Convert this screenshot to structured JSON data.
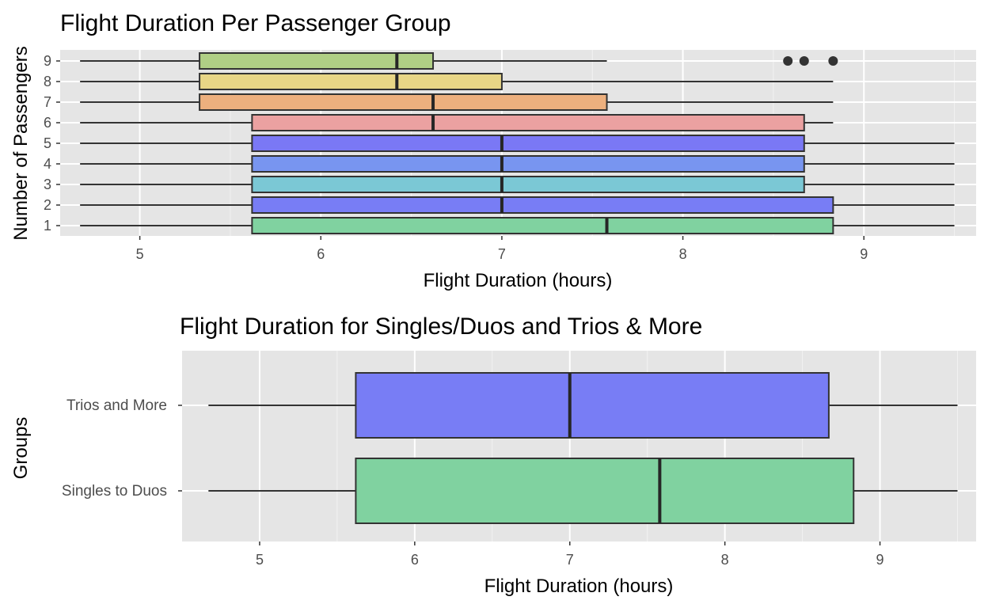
{
  "chart_data": [
    {
      "type": "boxplot",
      "orientation": "horizontal",
      "title": "Flight Duration Per Passenger Group",
      "xlabel": "Flight Duration (hours)",
      "ylabel": "Number of Passengers",
      "xlim": [
        4.56,
        9.62
      ],
      "xticks": [
        5,
        6,
        7,
        8,
        9
      ],
      "grid": true,
      "legend": "none",
      "categories": [
        "1",
        "2",
        "3",
        "4",
        "5",
        "6",
        "7",
        "8",
        "9"
      ],
      "boxes": [
        {
          "category": "1",
          "whisker_low": 4.67,
          "q1": 5.62,
          "median": 7.58,
          "q3": 8.83,
          "whisker_high": 9.5,
          "fill": "#80D2A0",
          "outliers": []
        },
        {
          "category": "2",
          "whisker_low": 4.67,
          "q1": 5.62,
          "median": 7.0,
          "q3": 8.83,
          "whisker_high": 9.5,
          "fill": "#787DF5",
          "outliers": []
        },
        {
          "category": "3",
          "whisker_low": 4.67,
          "q1": 5.62,
          "median": 7.0,
          "q3": 8.67,
          "whisker_high": 9.5,
          "fill": "#7BC8D5",
          "outliers": []
        },
        {
          "category": "4",
          "whisker_low": 4.67,
          "q1": 5.62,
          "median": 7.0,
          "q3": 8.67,
          "whisker_high": 9.5,
          "fill": "#7895F0",
          "outliers": []
        },
        {
          "category": "5",
          "whisker_low": 4.67,
          "q1": 5.62,
          "median": 7.0,
          "q3": 8.67,
          "whisker_high": 9.5,
          "fill": "#7A78F5",
          "outliers": []
        },
        {
          "category": "6",
          "whisker_low": 4.67,
          "q1": 5.62,
          "median": 6.62,
          "q3": 8.67,
          "whisker_high": 8.83,
          "fill": "#EBA1A1",
          "outliers": []
        },
        {
          "category": "7",
          "whisker_low": 4.67,
          "q1": 5.33,
          "median": 6.62,
          "q3": 7.58,
          "whisker_high": 8.83,
          "fill": "#EDB07E",
          "outliers": []
        },
        {
          "category": "8",
          "whisker_low": 4.67,
          "q1": 5.33,
          "median": 6.42,
          "q3": 7.0,
          "whisker_high": 8.83,
          "fill": "#E8D686",
          "outliers": []
        },
        {
          "category": "9",
          "whisker_low": 4.67,
          "q1": 5.33,
          "median": 6.42,
          "q3": 6.62,
          "whisker_high": 7.58,
          "fill": "#B0CF85",
          "outliers": [
            8.58,
            8.67,
            8.83
          ]
        }
      ]
    },
    {
      "type": "boxplot",
      "orientation": "horizontal",
      "title": "Flight Duration for Singles/Duos and Trios & More",
      "xlabel": "Flight Duration (hours)",
      "ylabel": "Groups",
      "xlim": [
        4.5,
        9.62
      ],
      "xticks": [
        5,
        6,
        7,
        8,
        9
      ],
      "grid": true,
      "legend": "none",
      "categories": [
        "Singles to Duos",
        "Trios and More"
      ],
      "boxes": [
        {
          "category": "Singles to Duos",
          "whisker_low": 4.67,
          "q1": 5.62,
          "median": 7.58,
          "q3": 8.83,
          "whisker_high": 9.5,
          "fill": "#80D2A0",
          "outliers": []
        },
        {
          "category": "Trios and More",
          "whisker_low": 4.67,
          "q1": 5.62,
          "median": 7.0,
          "q3": 8.67,
          "whisker_high": 9.5,
          "fill": "#787DF5",
          "outliers": []
        }
      ]
    }
  ]
}
